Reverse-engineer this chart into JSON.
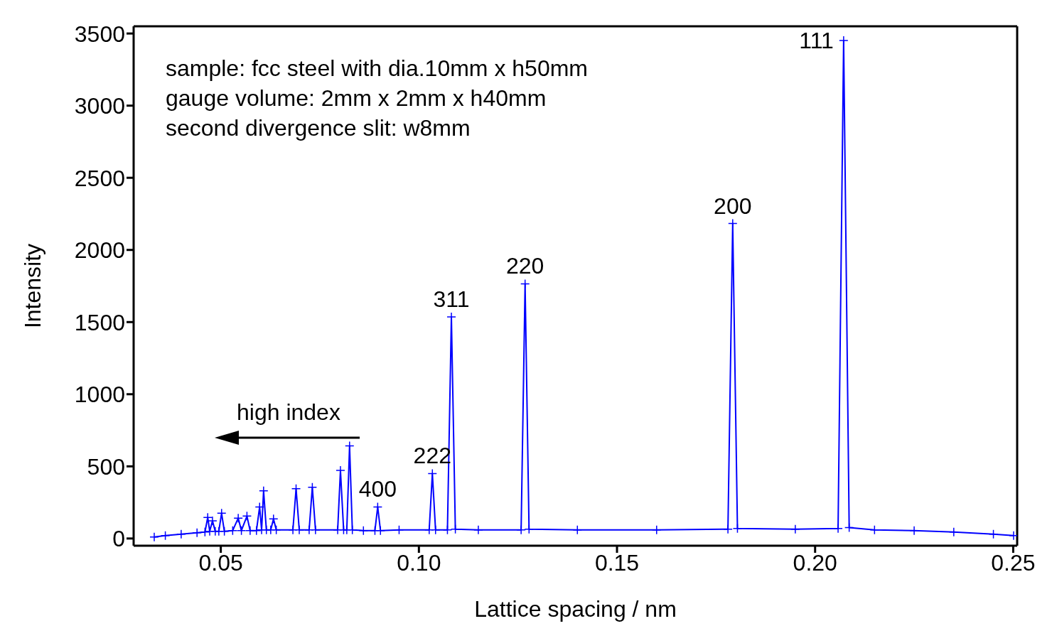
{
  "chart_data": {
    "type": "line",
    "marker": "cross",
    "color": "#0000ff",
    "xlabel": "Lattice spacing / nm",
    "ylabel": "Intensity",
    "xlim": [
      0.028,
      0.251
    ],
    "ylim": [
      -50,
      3550
    ],
    "xticks": [
      {
        "value": 0.05,
        "label": "0.05"
      },
      {
        "value": 0.1,
        "label": "0.10"
      },
      {
        "value": 0.15,
        "label": "0.15"
      },
      {
        "value": 0.2,
        "label": "0.20"
      },
      {
        "value": 0.25,
        "label": "0.25"
      }
    ],
    "yticks": [
      0,
      500,
      1000,
      1500,
      2000,
      2500,
      3000,
      3500
    ],
    "x": [
      0.0332,
      0.036,
      0.04,
      0.044,
      0.046,
      0.0467,
      0.0472,
      0.0479,
      0.0486,
      0.0495,
      0.0502,
      0.0509,
      0.053,
      0.0544,
      0.0552,
      0.0566,
      0.0574,
      0.059,
      0.0598,
      0.0603,
      0.0608,
      0.0615,
      0.0626,
      0.0633,
      0.064,
      0.0682,
      0.069,
      0.0698,
      0.0723,
      0.0731,
      0.0739,
      0.0795,
      0.0802,
      0.081,
      0.0818,
      0.0825,
      0.0832,
      0.086,
      0.0889,
      0.0896,
      0.0903,
      0.095,
      0.1026,
      0.1034,
      0.1042,
      0.1072,
      0.1082,
      0.1092,
      0.115,
      0.1258,
      0.1268,
      0.1278,
      0.14,
      0.16,
      0.178,
      0.1792,
      0.1804,
      0.195,
      0.2058,
      0.2072,
      0.2086,
      0.215,
      0.225,
      0.235,
      0.245,
      0.2501
    ],
    "values": [
      10,
      20,
      30,
      40,
      45,
      146,
      50,
      122,
      50,
      50,
      175,
      50,
      55,
      141,
      55,
      155,
      55,
      55,
      219,
      60,
      330,
      60,
      60,
      136,
      60,
      60,
      345,
      60,
      60,
      355,
      60,
      60,
      472,
      60,
      60,
      642,
      60,
      55,
      55,
      219,
      55,
      60,
      60,
      450,
      60,
      60,
      1536,
      65,
      60,
      60,
      1765,
      65,
      60,
      60,
      65,
      2183,
      70,
      65,
      70,
      3452,
      75,
      60,
      55,
      45,
      30,
      20
    ],
    "annotations": [
      "sample: fcc steel with dia.10mm x h50mm",
      "gauge volume: 2mm x 2mm x h40mm",
      "second divergence slit: w8mm",
      "high index",
      {
        "text": "111",
        "x": 0.2072,
        "y": 3452
      },
      {
        "text": "200",
        "x": 0.1792,
        "y": 2183
      },
      {
        "text": "220",
        "x": 0.1268,
        "y": 1765
      },
      {
        "text": "311",
        "x": 0.1082,
        "y": 1536
      },
      {
        "text": "222",
        "x": 0.1034,
        "y": 450
      },
      {
        "text": "400",
        "x": 0.0896,
        "y": 219
      }
    ]
  }
}
